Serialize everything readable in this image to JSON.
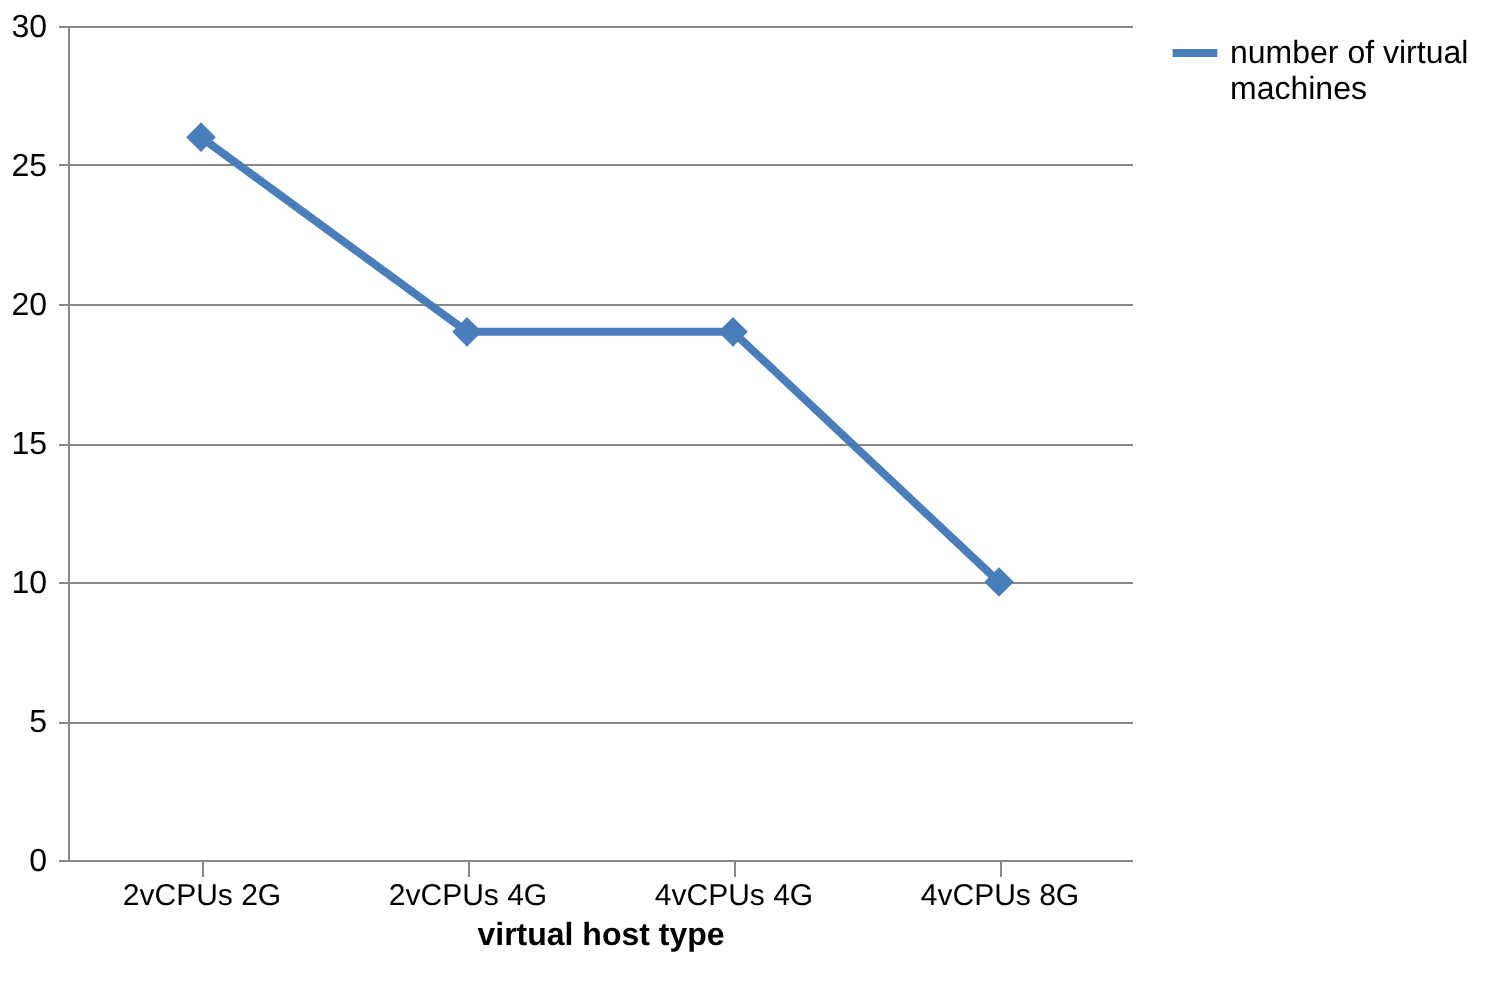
{
  "chart_data": {
    "type": "line",
    "xlabel": "virtual host type",
    "categories": [
      "2vCPUs 2G",
      "2vCPUs 4G",
      "4vCPUs 4G",
      "4vCPUs 8G"
    ],
    "series": [
      {
        "name": "number of virtual machines",
        "color": "#4a7ebb",
        "values": [
          26,
          19,
          19,
          10
        ]
      }
    ],
    "ylim": [
      0,
      30
    ],
    "yticks": [
      0,
      5,
      10,
      15,
      20,
      25,
      30
    ],
    "grid": "y",
    "legend": "right",
    "marker": "diamond",
    "line_style": "solid"
  }
}
